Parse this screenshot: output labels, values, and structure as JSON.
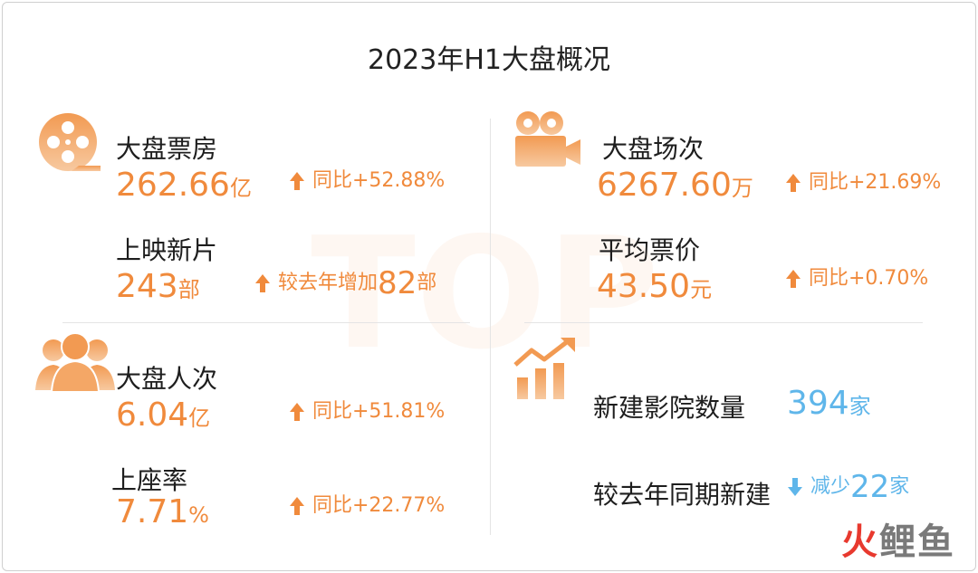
{
  "title": "2023年H1大盘概况",
  "colors": {
    "accent": "#f08a3c",
    "blue": "#5fb6ea",
    "text": "#1e1e1e"
  },
  "icons": [
    "film-reel-icon",
    "movie-camera-icon",
    "people-icon",
    "growth-chart-icon",
    "arrow-up-icon",
    "arrow-down-icon"
  ],
  "left": {
    "box_office": {
      "label": "大盘票房",
      "value": "262.66",
      "unit": "亿",
      "compare": "同比+52.88%"
    },
    "new_films": {
      "label": "上映新片",
      "value": "243",
      "unit": "部",
      "compare_prefix": "较去年增加",
      "compare_num": "82",
      "compare_unit": "部"
    },
    "admissions": {
      "label": "大盘人次",
      "value": "6.04",
      "unit": "亿",
      "compare": "同比+51.81%"
    },
    "occupancy": {
      "label": "上座率",
      "value": "7.71",
      "unit": "%",
      "compare": "同比+22.77%"
    }
  },
  "right": {
    "screenings": {
      "label": "大盘场次",
      "value": "6267.60",
      "unit": "万",
      "compare": "同比+21.69%"
    },
    "avg_price": {
      "label": "平均票价",
      "value": "43.50",
      "unit": "元",
      "compare": "同比+0.70%"
    },
    "new_cinemas": {
      "label": "新建影院数量",
      "value": "394",
      "unit": "家"
    },
    "yoy_new": {
      "label": "较去年同期新建",
      "compare_prefix": "减少",
      "value": "22",
      "unit": "家"
    }
  },
  "logo": {
    "part1": "火",
    "part2": "鲤鱼"
  }
}
